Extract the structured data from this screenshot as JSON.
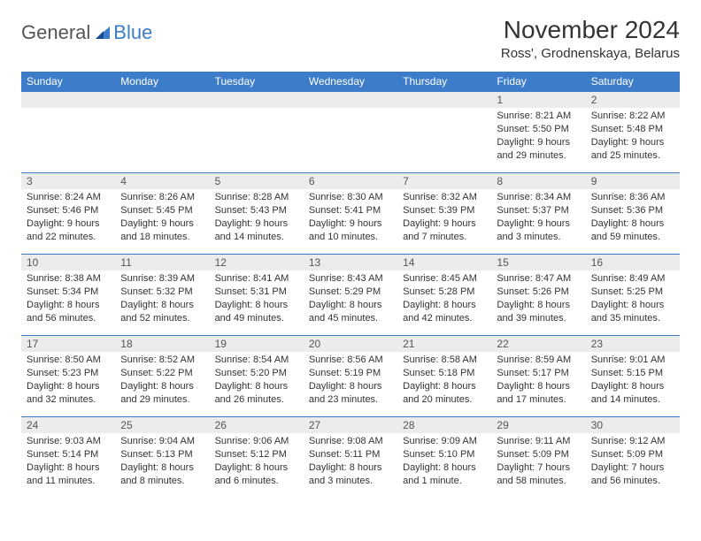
{
  "logo": {
    "general": "General",
    "blue": "Blue"
  },
  "title": "November 2024",
  "location": "Ross', Grodnenskaya, Belarus",
  "colors": {
    "header_bg": "#3d7cc9",
    "header_text": "#ffffff",
    "daynum_bg": "#ececec",
    "border": "#3d7cc9",
    "text": "#333333"
  },
  "day_headers": [
    "Sunday",
    "Monday",
    "Tuesday",
    "Wednesday",
    "Thursday",
    "Friday",
    "Saturday"
  ],
  "weeks": [
    [
      {
        "num": "",
        "sunrise": "",
        "sunset": "",
        "daylight": ""
      },
      {
        "num": "",
        "sunrise": "",
        "sunset": "",
        "daylight": ""
      },
      {
        "num": "",
        "sunrise": "",
        "sunset": "",
        "daylight": ""
      },
      {
        "num": "",
        "sunrise": "",
        "sunset": "",
        "daylight": ""
      },
      {
        "num": "",
        "sunrise": "",
        "sunset": "",
        "daylight": ""
      },
      {
        "num": "1",
        "sunrise": "Sunrise: 8:21 AM",
        "sunset": "Sunset: 5:50 PM",
        "daylight": "Daylight: 9 hours and 29 minutes."
      },
      {
        "num": "2",
        "sunrise": "Sunrise: 8:22 AM",
        "sunset": "Sunset: 5:48 PM",
        "daylight": "Daylight: 9 hours and 25 minutes."
      }
    ],
    [
      {
        "num": "3",
        "sunrise": "Sunrise: 8:24 AM",
        "sunset": "Sunset: 5:46 PM",
        "daylight": "Daylight: 9 hours and 22 minutes."
      },
      {
        "num": "4",
        "sunrise": "Sunrise: 8:26 AM",
        "sunset": "Sunset: 5:45 PM",
        "daylight": "Daylight: 9 hours and 18 minutes."
      },
      {
        "num": "5",
        "sunrise": "Sunrise: 8:28 AM",
        "sunset": "Sunset: 5:43 PM",
        "daylight": "Daylight: 9 hours and 14 minutes."
      },
      {
        "num": "6",
        "sunrise": "Sunrise: 8:30 AM",
        "sunset": "Sunset: 5:41 PM",
        "daylight": "Daylight: 9 hours and 10 minutes."
      },
      {
        "num": "7",
        "sunrise": "Sunrise: 8:32 AM",
        "sunset": "Sunset: 5:39 PM",
        "daylight": "Daylight: 9 hours and 7 minutes."
      },
      {
        "num": "8",
        "sunrise": "Sunrise: 8:34 AM",
        "sunset": "Sunset: 5:37 PM",
        "daylight": "Daylight: 9 hours and 3 minutes."
      },
      {
        "num": "9",
        "sunrise": "Sunrise: 8:36 AM",
        "sunset": "Sunset: 5:36 PM",
        "daylight": "Daylight: 8 hours and 59 minutes."
      }
    ],
    [
      {
        "num": "10",
        "sunrise": "Sunrise: 8:38 AM",
        "sunset": "Sunset: 5:34 PM",
        "daylight": "Daylight: 8 hours and 56 minutes."
      },
      {
        "num": "11",
        "sunrise": "Sunrise: 8:39 AM",
        "sunset": "Sunset: 5:32 PM",
        "daylight": "Daylight: 8 hours and 52 minutes."
      },
      {
        "num": "12",
        "sunrise": "Sunrise: 8:41 AM",
        "sunset": "Sunset: 5:31 PM",
        "daylight": "Daylight: 8 hours and 49 minutes."
      },
      {
        "num": "13",
        "sunrise": "Sunrise: 8:43 AM",
        "sunset": "Sunset: 5:29 PM",
        "daylight": "Daylight: 8 hours and 45 minutes."
      },
      {
        "num": "14",
        "sunrise": "Sunrise: 8:45 AM",
        "sunset": "Sunset: 5:28 PM",
        "daylight": "Daylight: 8 hours and 42 minutes."
      },
      {
        "num": "15",
        "sunrise": "Sunrise: 8:47 AM",
        "sunset": "Sunset: 5:26 PM",
        "daylight": "Daylight: 8 hours and 39 minutes."
      },
      {
        "num": "16",
        "sunrise": "Sunrise: 8:49 AM",
        "sunset": "Sunset: 5:25 PM",
        "daylight": "Daylight: 8 hours and 35 minutes."
      }
    ],
    [
      {
        "num": "17",
        "sunrise": "Sunrise: 8:50 AM",
        "sunset": "Sunset: 5:23 PM",
        "daylight": "Daylight: 8 hours and 32 minutes."
      },
      {
        "num": "18",
        "sunrise": "Sunrise: 8:52 AM",
        "sunset": "Sunset: 5:22 PM",
        "daylight": "Daylight: 8 hours and 29 minutes."
      },
      {
        "num": "19",
        "sunrise": "Sunrise: 8:54 AM",
        "sunset": "Sunset: 5:20 PM",
        "daylight": "Daylight: 8 hours and 26 minutes."
      },
      {
        "num": "20",
        "sunrise": "Sunrise: 8:56 AM",
        "sunset": "Sunset: 5:19 PM",
        "daylight": "Daylight: 8 hours and 23 minutes."
      },
      {
        "num": "21",
        "sunrise": "Sunrise: 8:58 AM",
        "sunset": "Sunset: 5:18 PM",
        "daylight": "Daylight: 8 hours and 20 minutes."
      },
      {
        "num": "22",
        "sunrise": "Sunrise: 8:59 AM",
        "sunset": "Sunset: 5:17 PM",
        "daylight": "Daylight: 8 hours and 17 minutes."
      },
      {
        "num": "23",
        "sunrise": "Sunrise: 9:01 AM",
        "sunset": "Sunset: 5:15 PM",
        "daylight": "Daylight: 8 hours and 14 minutes."
      }
    ],
    [
      {
        "num": "24",
        "sunrise": "Sunrise: 9:03 AM",
        "sunset": "Sunset: 5:14 PM",
        "daylight": "Daylight: 8 hours and 11 minutes."
      },
      {
        "num": "25",
        "sunrise": "Sunrise: 9:04 AM",
        "sunset": "Sunset: 5:13 PM",
        "daylight": "Daylight: 8 hours and 8 minutes."
      },
      {
        "num": "26",
        "sunrise": "Sunrise: 9:06 AM",
        "sunset": "Sunset: 5:12 PM",
        "daylight": "Daylight: 8 hours and 6 minutes."
      },
      {
        "num": "27",
        "sunrise": "Sunrise: 9:08 AM",
        "sunset": "Sunset: 5:11 PM",
        "daylight": "Daylight: 8 hours and 3 minutes."
      },
      {
        "num": "28",
        "sunrise": "Sunrise: 9:09 AM",
        "sunset": "Sunset: 5:10 PM",
        "daylight": "Daylight: 8 hours and 1 minute."
      },
      {
        "num": "29",
        "sunrise": "Sunrise: 9:11 AM",
        "sunset": "Sunset: 5:09 PM",
        "daylight": "Daylight: 7 hours and 58 minutes."
      },
      {
        "num": "30",
        "sunrise": "Sunrise: 9:12 AM",
        "sunset": "Sunset: 5:09 PM",
        "daylight": "Daylight: 7 hours and 56 minutes."
      }
    ]
  ]
}
